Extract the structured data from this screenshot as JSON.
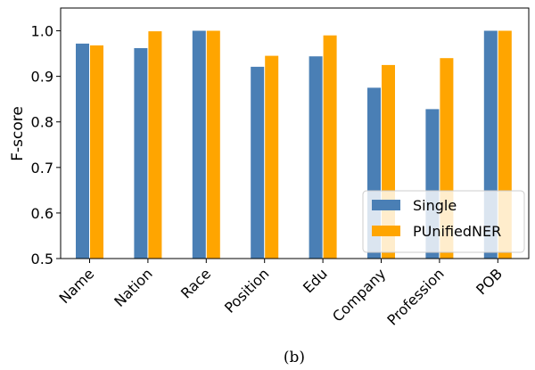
{
  "chart_data": {
    "type": "bar",
    "categories": [
      "Name",
      "Nation",
      "Race",
      "Position",
      "Edu",
      "Company",
      "Profession",
      "POB"
    ],
    "series": [
      {
        "name": "Single",
        "color": "#4a7fb5",
        "values": [
          0.972,
          0.962,
          1.0,
          0.921,
          0.944,
          0.875,
          0.828,
          1.0
        ]
      },
      {
        "name": "PUnifiedNER",
        "color": "#ffa500",
        "values": [
          0.968,
          0.999,
          1.0,
          0.945,
          0.99,
          0.925,
          0.94,
          1.0
        ]
      }
    ],
    "ylabel": "F-score",
    "xlabel": "",
    "ylim": [
      0.5,
      1.05
    ],
    "yticks": [
      "0.5",
      "0.6",
      "0.7",
      "0.8",
      "0.9",
      "1.0"
    ],
    "legend_position": "lower-right",
    "grid": false
  },
  "caption": "(b)"
}
